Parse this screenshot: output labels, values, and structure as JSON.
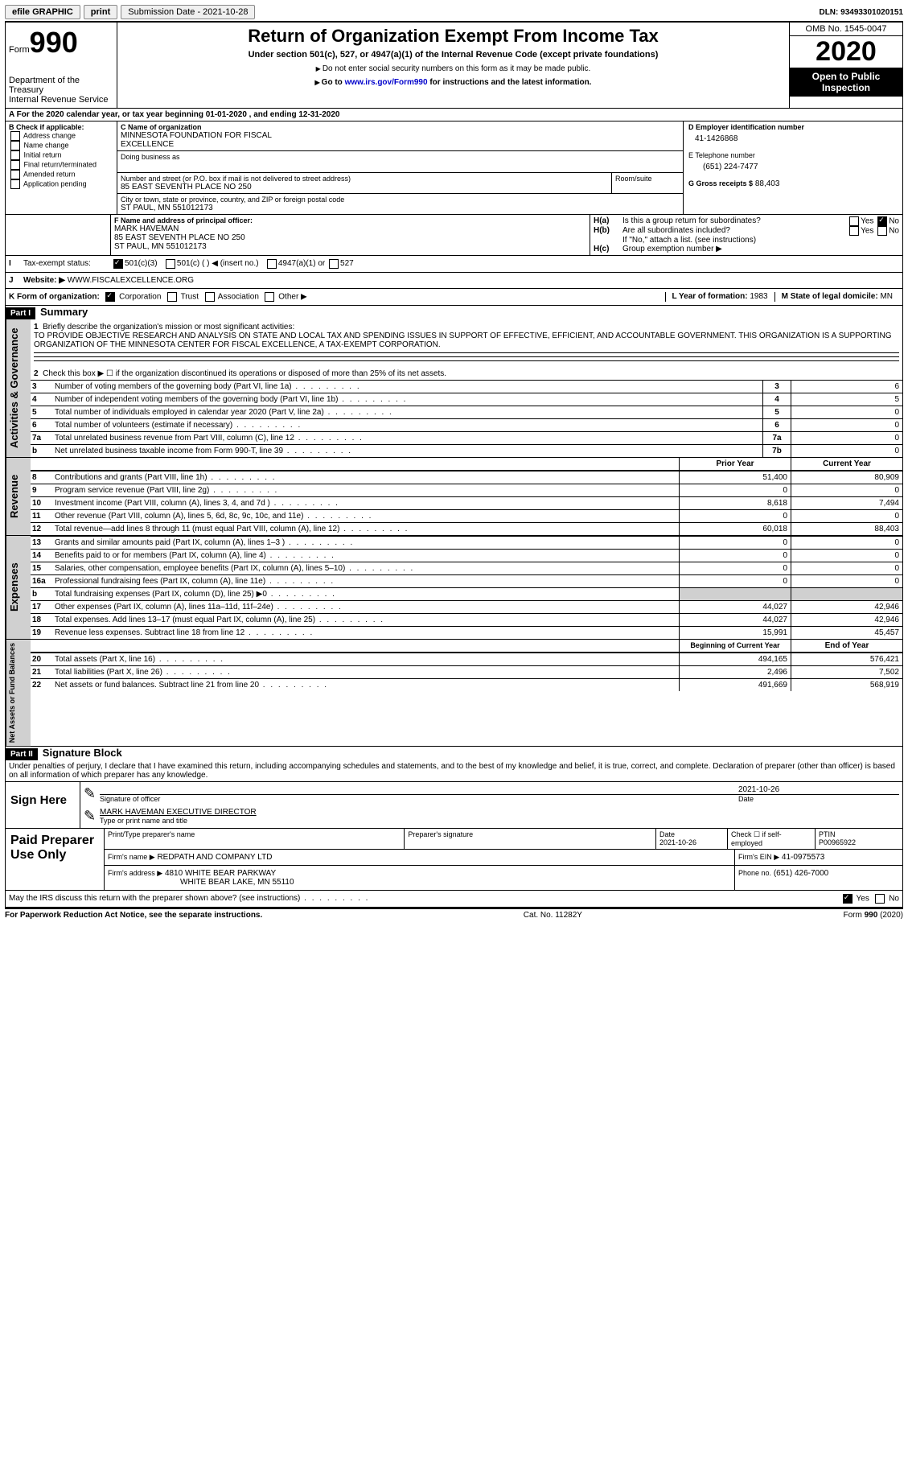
{
  "topbar": {
    "efile": "efile GRAPHIC",
    "print": "print",
    "submission": "Submission Date - 2021-10-28",
    "dln": "DLN: 93493301020151"
  },
  "header": {
    "form": "Form",
    "num": "990",
    "dept1": "Department of the Treasury",
    "dept2": "Internal Revenue Service",
    "title": "Return of Organization Exempt From Income Tax",
    "subtitle": "Under section 501(c), 527, or 4947(a)(1) of the Internal Revenue Code (except private foundations)",
    "note1": "Do not enter social security numbers on this form as it may be made public.",
    "note2_pre": "Go to ",
    "note2_link": "www.irs.gov/Form990",
    "note2_post": " for instructions and the latest information.",
    "omb": "OMB No. 1545-0047",
    "year": "2020",
    "open": "Open to Public Inspection"
  },
  "periodA": "For the 2020 calendar year, or tax year beginning 01-01-2020   , and ending 12-31-2020",
  "boxB": {
    "title": "B Check if applicable:",
    "items": [
      "Address change",
      "Name change",
      "Initial return",
      "Final return/terminated",
      "Amended return",
      "Application pending"
    ]
  },
  "boxC": {
    "label": "C Name of organization",
    "name1": "MINNESOTA FOUNDATION FOR FISCAL",
    "name2": "EXCELLENCE",
    "dba_label": "Doing business as",
    "street_label": "Number and street (or P.O. box if mail is not delivered to street address)",
    "room_label": "Room/suite",
    "street": "85 EAST SEVENTH PLACE NO 250",
    "city_label": "City or town, state or province, country, and ZIP or foreign postal code",
    "city": "ST PAUL, MN  551012173"
  },
  "boxD": {
    "label": "D Employer identification number",
    "value": "41-1426868"
  },
  "boxE": {
    "label": "E Telephone number",
    "value": "(651) 224-7477"
  },
  "boxG": {
    "label": "G Gross receipts $",
    "value": "88,403"
  },
  "boxF": {
    "label": "F Name and address of principal officer:",
    "line1": "MARK HAVEMAN",
    "line2": "85 EAST SEVENTH PLACE NO 250",
    "line3": "ST PAUL, MN  551012173"
  },
  "boxH": {
    "a_label": "Is this a group return for subordinates?",
    "b_label": "Are all subordinates included?",
    "b_note": "If \"No,\" attach a list. (see instructions)",
    "c_label": "Group exemption number ▶",
    "yes": "Yes",
    "no": "No"
  },
  "rowI": {
    "label": "Tax-exempt status:",
    "opts": [
      "501(c)(3)",
      "501(c) (  ) ◀ (insert no.)",
      "4947(a)(1) or",
      "527"
    ]
  },
  "rowJ": {
    "label": "Website: ▶",
    "value": "WWW.FISCALEXCELLENCE.ORG"
  },
  "rowK": {
    "label": "K Form of organization:",
    "opts": [
      "Corporation",
      "Trust",
      "Association",
      "Other ▶"
    ]
  },
  "rowL": {
    "label": "L Year of formation:",
    "value": "1983"
  },
  "rowM": {
    "label": "M State of legal domicile:",
    "value": "MN"
  },
  "part1": {
    "label": "Part I",
    "title": "Summary",
    "q1_label": "Briefly describe the organization's mission or most significant activities:",
    "q1_text": "TO PROVIDE OBJECTIVE RESEARCH AND ANALYSIS ON STATE AND LOCAL TAX AND SPENDING ISSUES IN SUPPORT OF EFFECTIVE, EFFICIENT, AND ACCOUNTABLE GOVERNMENT. THIS ORGANIZATION IS A SUPPORTING ORGANIZATION OF THE MINNESOTA CENTER FOR FISCAL EXCELLENCE, A TAX-EXEMPT CORPORATION.",
    "q2": "Check this box ▶ ☐ if the organization discontinued its operations or disposed of more than 25% of its net assets.",
    "lines_gov": [
      {
        "n": "3",
        "t": "Number of voting members of the governing body (Part VI, line 1a)",
        "box": "3",
        "v": "6"
      },
      {
        "n": "4",
        "t": "Number of independent voting members of the governing body (Part VI, line 1b)",
        "box": "4",
        "v": "5"
      },
      {
        "n": "5",
        "t": "Total number of individuals employed in calendar year 2020 (Part V, line 2a)",
        "box": "5",
        "v": "0"
      },
      {
        "n": "6",
        "t": "Total number of volunteers (estimate if necessary)",
        "box": "6",
        "v": "0"
      },
      {
        "n": "7a",
        "t": "Total unrelated business revenue from Part VIII, column (C), line 12",
        "box": "7a",
        "v": "0"
      },
      {
        "n": "b",
        "t": "Net unrelated business taxable income from Form 990-T, line 39",
        "box": "7b",
        "v": "0"
      }
    ],
    "col_prior": "Prior Year",
    "col_current": "Current Year",
    "col_begin": "Beginning of Current Year",
    "col_end": "End of Year",
    "revenue": [
      {
        "n": "8",
        "t": "Contributions and grants (Part VIII, line 1h)",
        "p": "51,400",
        "c": "80,909"
      },
      {
        "n": "9",
        "t": "Program service revenue (Part VIII, line 2g)",
        "p": "0",
        "c": "0"
      },
      {
        "n": "10",
        "t": "Investment income (Part VIII, column (A), lines 3, 4, and 7d )",
        "p": "8,618",
        "c": "7,494"
      },
      {
        "n": "11",
        "t": "Other revenue (Part VIII, column (A), lines 5, 6d, 8c, 9c, 10c, and 11e)",
        "p": "0",
        "c": "0"
      },
      {
        "n": "12",
        "t": "Total revenue—add lines 8 through 11 (must equal Part VIII, column (A), line 12)",
        "p": "60,018",
        "c": "88,403"
      }
    ],
    "expenses": [
      {
        "n": "13",
        "t": "Grants and similar amounts paid (Part IX, column (A), lines 1–3 )",
        "p": "0",
        "c": "0"
      },
      {
        "n": "14",
        "t": "Benefits paid to or for members (Part IX, column (A), line 4)",
        "p": "0",
        "c": "0"
      },
      {
        "n": "15",
        "t": "Salaries, other compensation, employee benefits (Part IX, column (A), lines 5–10)",
        "p": "0",
        "c": "0"
      },
      {
        "n": "16a",
        "t": "Professional fundraising fees (Part IX, column (A), line 11e)",
        "p": "0",
        "c": "0"
      },
      {
        "n": "b",
        "t": "Total fundraising expenses (Part IX, column (D), line 25) ▶0",
        "p": "",
        "c": "",
        "gray": true
      },
      {
        "n": "17",
        "t": "Other expenses (Part IX, column (A), lines 11a–11d, 11f–24e)",
        "p": "44,027",
        "c": "42,946"
      },
      {
        "n": "18",
        "t": "Total expenses. Add lines 13–17 (must equal Part IX, column (A), line 25)",
        "p": "44,027",
        "c": "42,946"
      },
      {
        "n": "19",
        "t": "Revenue less expenses. Subtract line 18 from line 12",
        "p": "15,991",
        "c": "45,457"
      }
    ],
    "netassets": [
      {
        "n": "20",
        "t": "Total assets (Part X, line 16)",
        "p": "494,165",
        "c": "576,421"
      },
      {
        "n": "21",
        "t": "Total liabilities (Part X, line 26)",
        "p": "2,496",
        "c": "7,502"
      },
      {
        "n": "22",
        "t": "Net assets or fund balances. Subtract line 21 from line 20",
        "p": "491,669",
        "c": "568,919"
      }
    ],
    "vlabels": {
      "gov": "Activities & Governance",
      "rev": "Revenue",
      "exp": "Expenses",
      "net": "Net Assets or Fund Balances"
    }
  },
  "part2": {
    "label": "Part II",
    "title": "Signature Block",
    "declaration": "Under penalties of perjury, I declare that I have examined this return, including accompanying schedules and statements, and to the best of my knowledge and belief, it is true, correct, and complete. Declaration of preparer (other than officer) is based on all information of which preparer has any knowledge.",
    "sign_here": "Sign Here",
    "sig_date": "2021-10-26",
    "sig_label": "Signature of officer",
    "date_label": "Date",
    "name_title": "MARK HAVEMAN  EXECUTIVE DIRECTOR",
    "name_label": "Type or print name and title",
    "paid": "Paid Preparer Use Only",
    "prep_name_label": "Print/Type preparer's name",
    "prep_sig_label": "Preparer's signature",
    "prep_date_label": "Date",
    "prep_date": "2021-10-26",
    "check_if": "Check ☐ if self-employed",
    "ptin_label": "PTIN",
    "ptin": "P00965922",
    "firm_name_label": "Firm's name    ▶",
    "firm_name": "REDPATH AND COMPANY LTD",
    "firm_ein_label": "Firm's EIN ▶",
    "firm_ein": "41-0975573",
    "firm_addr_label": "Firm's address ▶",
    "firm_addr1": "4810 WHITE BEAR PARKWAY",
    "firm_addr2": "WHITE BEAR LAKE, MN  55110",
    "phone_label": "Phone no.",
    "phone": "(651) 426-7000",
    "discuss": "May the IRS discuss this return with the preparer shown above? (see instructions)"
  },
  "footer": {
    "left": "For Paperwork Reduction Act Notice, see the separate instructions.",
    "mid": "Cat. No. 11282Y",
    "right": "Form 990 (2020)"
  }
}
